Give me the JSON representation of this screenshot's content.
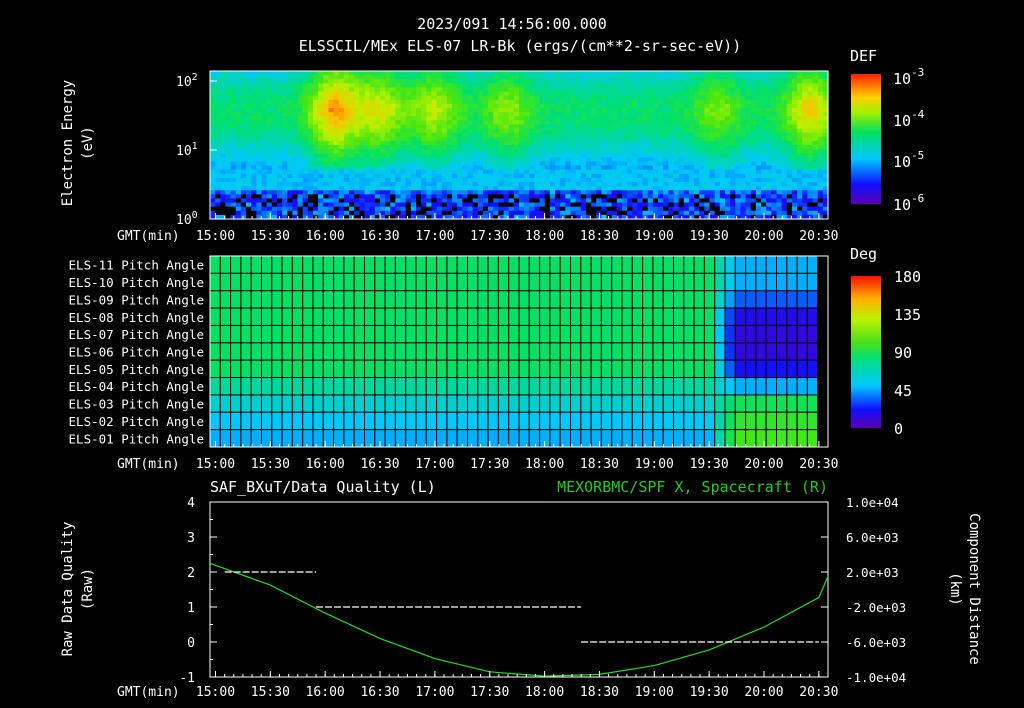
{
  "header": {
    "title_line1": "2023/091 14:56:00.000",
    "title_line2": "ELSSCIL/MEx ELS-07 LR-Bk  (ergs/(cm**2-sr-sec-eV))"
  },
  "time_axis": {
    "label": "GMT(min)",
    "ticks": [
      "15:00",
      "15:30",
      "16:00",
      "16:30",
      "17:00",
      "17:30",
      "18:00",
      "18:30",
      "19:00",
      "19:30",
      "20:00",
      "20:30"
    ]
  },
  "colors": {
    "grid": "#000000",
    "axis": "#ffffff",
    "line_green": "#22dd22",
    "right_label_green": "#22cc22",
    "quality_dash": "#ffffff"
  },
  "chart_data": [
    {
      "type": "heatmap",
      "name": "energy-spectrogram",
      "ylabel_line1": "Electron Energy",
      "ylabel_line2": "(eV)",
      "y_ticks": [
        {
          "base": "10",
          "exp": "2"
        },
        {
          "base": "10",
          "exp": "1"
        },
        {
          "base": "10",
          "exp": "0"
        }
      ],
      "yscale": "log",
      "colorbar": {
        "title": "DEF",
        "ticks": [
          {
            "base": "10",
            "exp": "-3"
          },
          {
            "base": "10",
            "exp": "-4"
          },
          {
            "base": "10",
            "exp": "-5"
          },
          {
            "base": "10",
            "exp": "-6"
          }
        ]
      }
    },
    {
      "type": "heatmap",
      "name": "pitch-angle",
      "rows": [
        "ELS-11 Pitch Angle",
        "ELS-10 Pitch Angle",
        "ELS-09 Pitch Angle",
        "ELS-08 Pitch Angle",
        "ELS-07 Pitch Angle",
        "ELS-06 Pitch Angle",
        "ELS-05 Pitch Angle",
        "ELS-04 Pitch Angle",
        "ELS-03 Pitch Angle",
        "ELS-02 Pitch Angle",
        "ELS-01 Pitch Angle"
      ],
      "row_values_before_1930": [
        92,
        92,
        92,
        92,
        92,
        92,
        92,
        80,
        70,
        60,
        55
      ],
      "row_values_after_1945": [
        55,
        55,
        40,
        20,
        15,
        15,
        25,
        55,
        95,
        105,
        110
      ],
      "colorbar": {
        "title": "Deg",
        "ticks": [
          "180",
          "135",
          "90",
          "45",
          "0"
        ],
        "range": [
          0,
          180
        ]
      }
    },
    {
      "type": "line",
      "name": "quality-and-distance",
      "title_left": "SAF_BXuT/Data Quality (L)",
      "title_right": "MEXORBMC/SPF X, Spacecraft (R)",
      "ylabel_left_line1": "Raw Data Quality",
      "ylabel_left_line2": "(Raw)",
      "ylabel_right_line1": "Component Distance",
      "ylabel_right_line2": "(km)",
      "left_ticks": [
        "4",
        "3",
        "2",
        "1",
        "0",
        "-1"
      ],
      "right_ticks": [
        "1.0e+04",
        "6.0e+03",
        "2.0e+03",
        "-2.0e+03",
        "-6.0e+03",
        "-1.0e+04"
      ],
      "ylim_left": [
        -1,
        4
      ],
      "ylim_right": [
        -10000,
        10000
      ],
      "quality_segments": [
        {
          "x_start": "15:05",
          "x_end": "15:55",
          "value": 2
        },
        {
          "x_start": "15:55",
          "x_end": "18:20",
          "value": 1
        },
        {
          "x_start": "18:20",
          "x_end": "20:30",
          "value": 0
        }
      ],
      "distance_series": {
        "x": [
          "14:57",
          "15:30",
          "16:00",
          "16:30",
          "17:00",
          "17:30",
          "18:00",
          "18:30",
          "19:00",
          "19:30",
          "20:00",
          "20:30",
          "20:35"
        ],
        "values": [
          3000,
          500,
          -2700,
          -5600,
          -7900,
          -9400,
          -9900,
          -9700,
          -8700,
          -6900,
          -4300,
          -900,
          1500
        ]
      }
    }
  ]
}
